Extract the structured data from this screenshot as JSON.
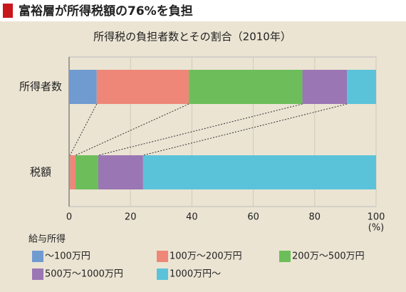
{
  "chart_data": {
    "type": "stacked_barh",
    "header": "富裕層が所得税額の76%を負担",
    "title": "所得税の負担者数とその割合（2010年）",
    "categories": [
      "所得者数",
      "税額"
    ],
    "series": [
      {
        "name": "～100万円",
        "color": "#6f9bd1",
        "values": [
          9,
          0.3
        ]
      },
      {
        "name": "100万～200万円",
        "color": "#ee8778",
        "values": [
          30,
          1.8
        ]
      },
      {
        "name": "200万～500万円",
        "color": "#6dbe5a",
        "values": [
          37,
          7.4
        ]
      },
      {
        "name": "500万～1000万円",
        "color": "#9b76b4",
        "values": [
          14.5,
          14.6
        ]
      },
      {
        "name": "1000万円～",
        "color": "#5bc3d9",
        "values": [
          9.5,
          75.9
        ]
      }
    ],
    "legend_title": "給与所得",
    "xlabel": "(%)",
    "xlim": [
      0,
      100
    ],
    "xticks": [
      0,
      20,
      40,
      60,
      80,
      100
    ],
    "grid": true
  }
}
